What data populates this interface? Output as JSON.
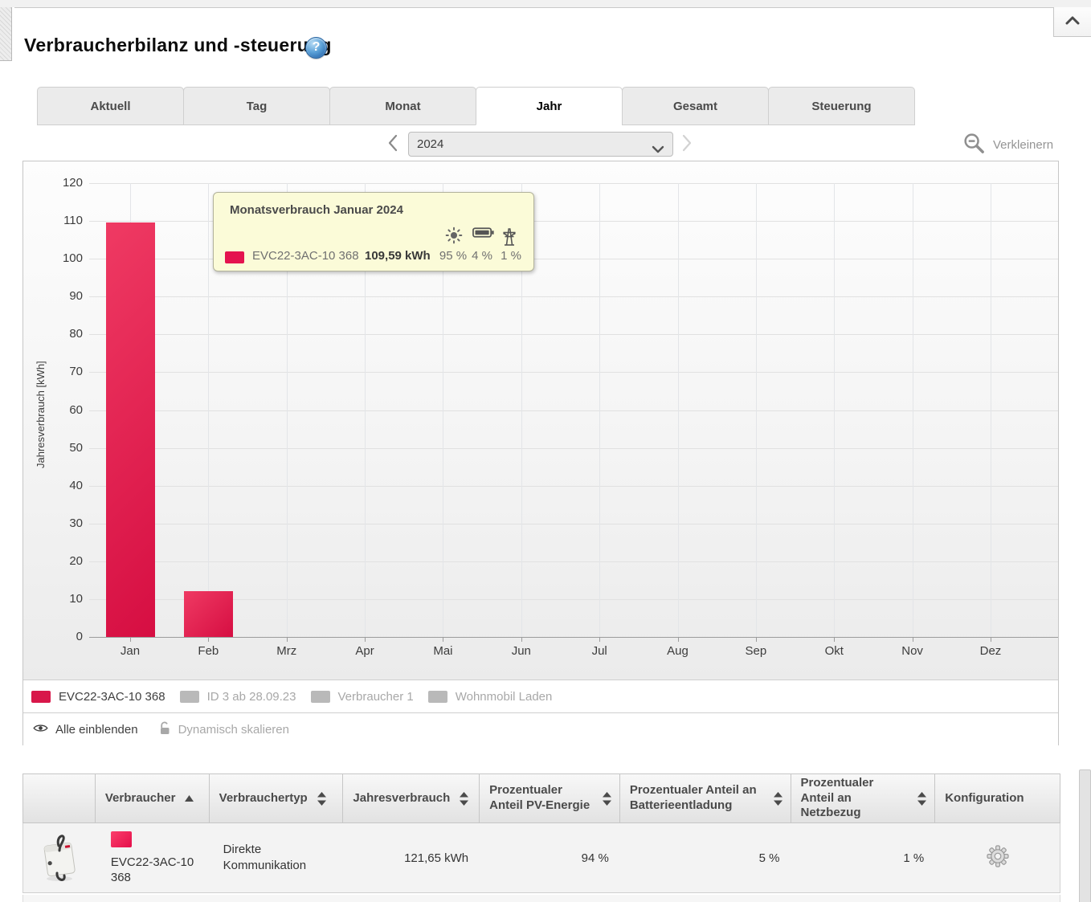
{
  "page": {
    "title": "Verbraucherbilanz und -steuerung"
  },
  "tabs": [
    {
      "label": "Aktuell",
      "active": false
    },
    {
      "label": "Tag",
      "active": false
    },
    {
      "label": "Monat",
      "active": false
    },
    {
      "label": "Jahr",
      "active": true
    },
    {
      "label": "Gesamt",
      "active": false
    },
    {
      "label": "Steuerung",
      "active": false
    }
  ],
  "toolbar": {
    "year": "2024",
    "zoom_out_label": "Verkleinern"
  },
  "chart_data": {
    "type": "bar",
    "title": "",
    "xlabel": "",
    "ylabel": "Jahresverbrauch [kWh]",
    "ylim": [
      0,
      120
    ],
    "ytick_step": 10,
    "grid": true,
    "categories": [
      "Jan",
      "Feb",
      "Mrz",
      "Apr",
      "Mai",
      "Jun",
      "Jul",
      "Aug",
      "Sep",
      "Okt",
      "Nov",
      "Dez"
    ],
    "series": [
      {
        "name": "EVC22-3AC-10 368",
        "color": "#e4134f",
        "values": [
          109.59,
          12.06,
          0,
          0,
          0,
          0,
          0,
          0,
          0,
          0,
          0,
          0
        ]
      }
    ],
    "legend": [
      {
        "label": "EVC22-3AC-10 368",
        "color": "#d8174a",
        "active": true
      },
      {
        "label": "ID 3 ab 28.09.23",
        "color": "#b9b9b9",
        "active": false
      },
      {
        "label": "Verbraucher 1",
        "color": "#b9b9b9",
        "active": false
      },
      {
        "label": "Wohnmobil Laden",
        "color": "#b9b9b9",
        "active": false
      }
    ],
    "legend_position": "bottom"
  },
  "tooltip": {
    "title": "Monatsverbrauch Januar 2024",
    "series": "EVC22-3AC-10 368",
    "value": "109,59 kWh",
    "pv_share": "95 %",
    "battery_share": "4 %",
    "grid_share": "1 %"
  },
  "chart_controls": {
    "show_all": "Alle einblenden",
    "dynamic_scale": "Dynamisch skalieren"
  },
  "table": {
    "headers": [
      {
        "label": "",
        "sort": "none"
      },
      {
        "label": "Verbraucher",
        "sort": "asc"
      },
      {
        "label": "Verbrauchertyp",
        "sort": "both"
      },
      {
        "label": "Jahresverbrauch",
        "sort": "both"
      },
      {
        "label": "Prozentualer Anteil PV-Energie",
        "sort": "both"
      },
      {
        "label": "Prozentualer Anteil an Batterieentladung",
        "sort": "both"
      },
      {
        "label": "Prozentualer Anteil an Netzbezug",
        "sort": "both"
      },
      {
        "label": "Konfiguration",
        "sort": "none"
      }
    ],
    "rows": [
      {
        "device_icon": "wallbox-photo",
        "color": "#f23b63",
        "name_lines": [
          "EVC22-3AC-10",
          "368"
        ],
        "type": "Direkte Kommunikation",
        "consumption": "121,65 kWh",
        "pv": "94 %",
        "battery": "5 %",
        "grid": "1 %"
      }
    ]
  },
  "icons": {
    "help": "question-mark-icon",
    "year_prev": "chevron-left-icon",
    "year_next": "chevron-right-icon",
    "year_dropdown": "chevron-down-icon",
    "zoom_out": "magnifier-minus-icon",
    "scroll_up": "chevron-up-icon",
    "show_all": "eye-icon",
    "dynamic_scale": "padlock-open-icon",
    "pv": "sun-icon",
    "battery": "battery-icon",
    "grid": "power-pylon-icon",
    "configuration": "gear-icon",
    "sorted_asc": "triangle-up-icon",
    "sortable": "triangles-up-down-icon"
  }
}
